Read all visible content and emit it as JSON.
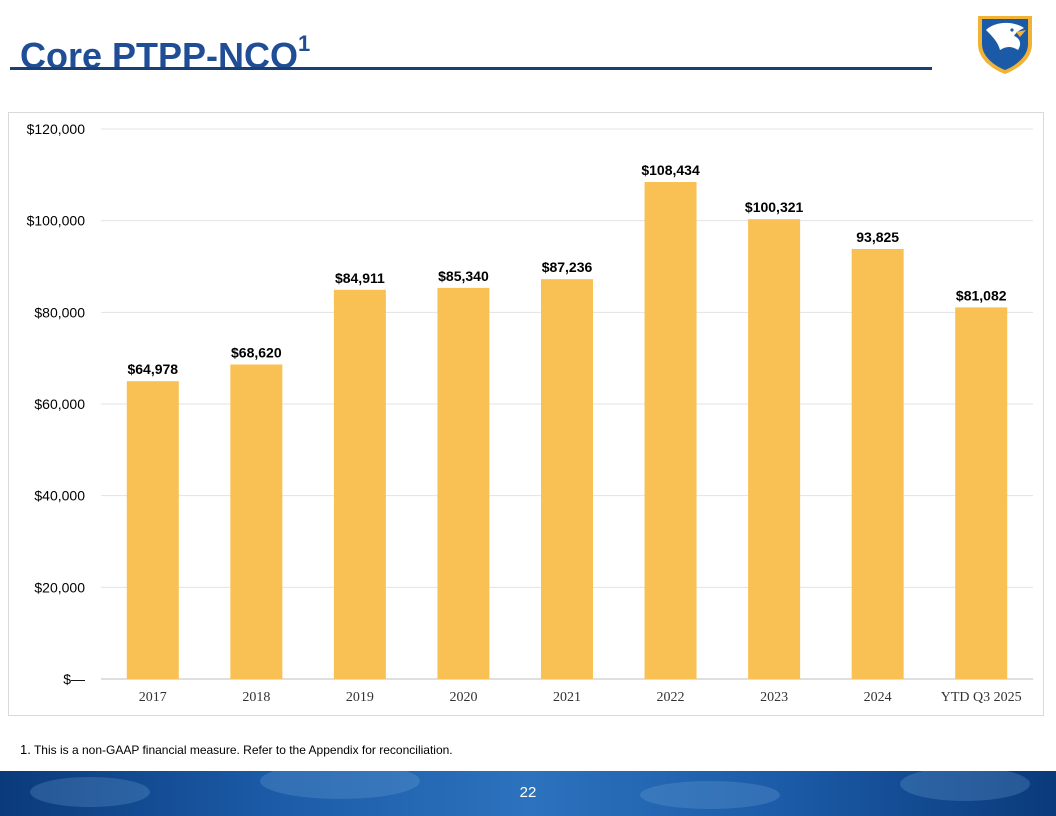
{
  "slide": {
    "title": "Core PTPP-NCO",
    "title_superscript": "1",
    "footnote_number": "1.",
    "footnote_text": "This is a non-GAAP financial measure. Refer to the Appendix for reconciliation.",
    "page_number": "22"
  },
  "colors": {
    "title": "#1f4e96",
    "bar": "#f9c153",
    "footer": "#1b5aa6"
  },
  "chart_data": {
    "type": "bar",
    "title": "",
    "xlabel": "",
    "ylabel": "",
    "categories": [
      "2017",
      "2018",
      "2019",
      "2020",
      "2021",
      "2022",
      "2023",
      "2024",
      "YTD Q3 2025"
    ],
    "values": [
      64978,
      68620,
      84911,
      85340,
      87236,
      108434,
      100321,
      93825,
      81082
    ],
    "data_labels": [
      "$64,978",
      "$68,620",
      "$84,911",
      "$85,340",
      "$87,236",
      "$108,434",
      "$100,321",
      "93,825",
      "$81,082"
    ],
    "ylim": [
      0,
      120000
    ],
    "yticks": [
      0,
      20000,
      40000,
      60000,
      80000,
      100000,
      120000
    ],
    "ytick_labels": [
      "$—",
      "$20,000",
      "$40,000",
      "$60,000",
      "$80,000",
      "$100,000",
      "$120,000"
    ],
    "grid": true,
    "legend": "none"
  }
}
